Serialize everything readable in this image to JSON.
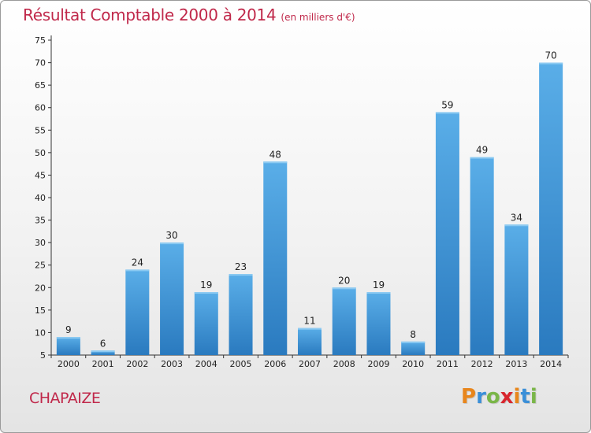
{
  "chart_data": {
    "type": "bar",
    "title": "Résultat Comptable 2000 à 2014",
    "subtitle": "(en milliers d'€)",
    "categories": [
      "2000",
      "2001",
      "2002",
      "2003",
      "2004",
      "2005",
      "2006",
      "2007",
      "2008",
      "2009",
      "2010",
      "2011",
      "2012",
      "2013",
      "2014"
    ],
    "values": [
      9,
      6,
      24,
      30,
      19,
      23,
      48,
      11,
      20,
      19,
      8,
      59,
      49,
      34,
      70
    ],
    "ylim": [
      5,
      75
    ],
    "yticks": [
      5,
      10,
      15,
      20,
      25,
      30,
      35,
      40,
      45,
      50,
      55,
      60,
      65,
      70,
      75
    ],
    "xlabel": "",
    "ylabel": "",
    "grid": false
  },
  "commune": "CHAPAIZE",
  "logo": {
    "letters": [
      "P",
      "r",
      "o",
      "x",
      "i",
      "t",
      "i"
    ],
    "colors": [
      "#e8861c",
      "#3a8fd8",
      "#7ab648",
      "#d8262e",
      "#e8861c",
      "#3a8fd8",
      "#7ab648"
    ]
  },
  "colors": {
    "title": "#c0284a",
    "bar_top": "#5aaee8",
    "bar_bottom": "#2a7abf"
  }
}
